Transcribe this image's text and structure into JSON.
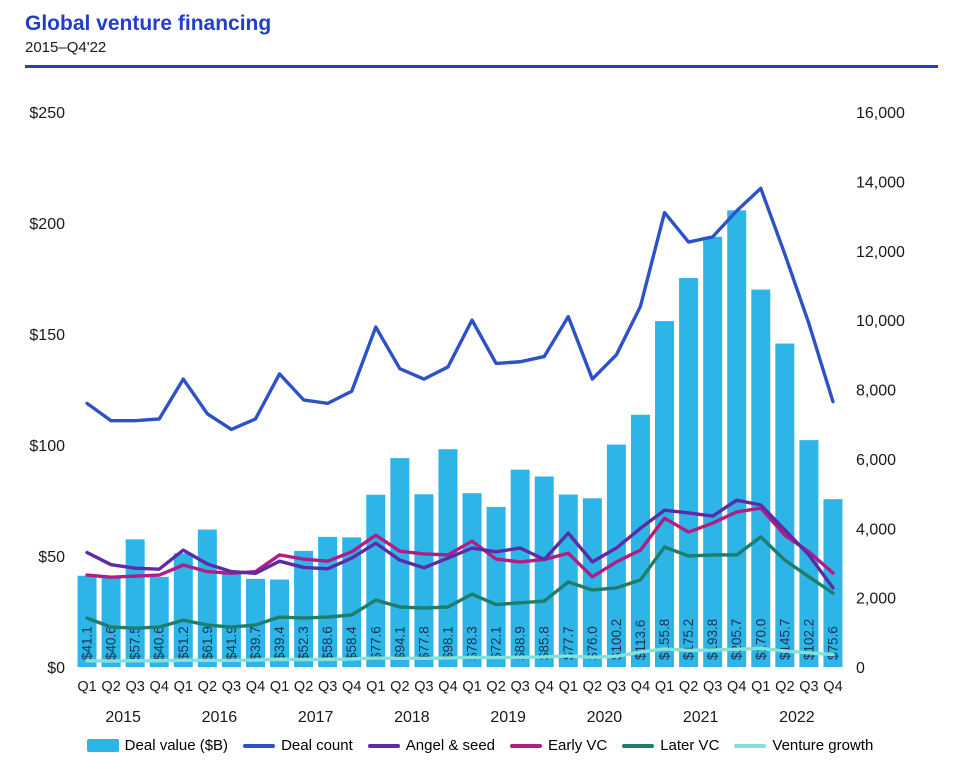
{
  "header": {
    "title": "Global venture financing",
    "subtitle": "2015–Q4'22"
  },
  "colors": {
    "title_blue": "#2140C7",
    "bar": "#2EB5E8",
    "deal_count": "#2C52C8",
    "angel_seed": "#5C2BA8",
    "early_vc": "#B01D84",
    "later_vc": "#1F7D6C",
    "venture_growth": "#82E2D7",
    "bar_label_text": "#1F3250",
    "axis_text": "#1a1a1a"
  },
  "chart_data": {
    "type": "bar+line",
    "title": "Global venture financing",
    "subtitle": "2015–Q4'22",
    "grid": "off",
    "legend_position": "bottom",
    "x": {
      "quarter_labels": [
        "Q1",
        "Q2",
        "Q3",
        "Q4"
      ],
      "year_labels": [
        "2015",
        "2016",
        "2017",
        "2018",
        "2019",
        "2020",
        "2021",
        "2022"
      ]
    },
    "left_axis": {
      "min": 0,
      "max": 250,
      "tick_values": [
        0,
        50,
        100,
        150,
        200,
        250
      ],
      "tick_labels": [
        "$0",
        "$50",
        "$100",
        "$150",
        "$200",
        "$250"
      ]
    },
    "right_axis": {
      "min": 0,
      "max": 16000,
      "tick_values": [
        0,
        2000,
        4000,
        6000,
        8000,
        10000,
        12000,
        14000,
        16000
      ],
      "tick_labels": [
        "0",
        "2,000",
        "4,000",
        "6,000",
        "8,000",
        "10,000",
        "12,000",
        "14,000",
        "16,000"
      ]
    },
    "bar_series": {
      "name": "Deal value ($B)",
      "axis": "left",
      "color_key": "bar",
      "values": [
        41.1,
        40.6,
        57.5,
        40.6,
        51.2,
        61.9,
        41.9,
        39.7,
        39.4,
        52.3,
        58.6,
        58.4,
        77.6,
        94.1,
        77.8,
        98.1,
        78.3,
        72.1,
        88.9,
        85.8,
        77.7,
        76.0,
        100.2,
        113.6,
        155.8,
        175.2,
        193.8,
        205.7,
        170.0,
        145.7,
        102.2,
        75.6
      ],
      "value_labels": [
        "$41.1",
        "$40.6",
        "$57.5",
        "$40.6",
        "$51.2",
        "$61.9",
        "$41.9",
        "$39.7",
        "$39.4",
        "$52.3",
        "$58.6",
        "$58.4",
        "$77.6",
        "$94.1",
        "$77.8",
        "$98.1",
        "$78.3",
        "$72.1",
        "$88.9",
        "$85.8",
        "$77.7",
        "$76.0",
        "$100.2",
        "$113.6",
        "$155.8",
        "$175.2",
        "$193.8",
        "$205.7",
        "$170.0",
        "$145.7",
        "$102.2",
        "$75.6"
      ]
    },
    "line_series": [
      {
        "name": "Deal count",
        "axis": "right",
        "color_key": "deal_count",
        "values": [
          7600,
          7100,
          7100,
          7150,
          8300,
          7300,
          6850,
          7150,
          8450,
          7700,
          7600,
          7950,
          9800,
          8600,
          8300,
          8650,
          10000,
          8750,
          8800,
          8950,
          10100,
          8300,
          9000,
          10400,
          13100,
          12250,
          12400,
          13150,
          13800,
          11900,
          9900,
          7650
        ]
      },
      {
        "name": "Angel & seed",
        "axis": "right",
        "color_key": "angel_seed",
        "values": [
          3300,
          2950,
          2850,
          2820,
          3370,
          2970,
          2750,
          2700,
          3050,
          2870,
          2830,
          3140,
          3570,
          3080,
          2860,
          3140,
          3430,
          3320,
          3430,
          3100,
          3860,
          3030,
          3430,
          4000,
          4520,
          4440,
          4350,
          4810,
          4670,
          3950,
          3230,
          2280
        ]
      },
      {
        "name": "Early VC",
        "axis": "right",
        "color_key": "early_vc",
        "values": [
          2650,
          2590,
          2620,
          2650,
          2940,
          2750,
          2700,
          2750,
          3230,
          3110,
          3050,
          3320,
          3800,
          3340,
          3260,
          3230,
          3630,
          3110,
          3030,
          3100,
          3280,
          2600,
          3030,
          3370,
          4290,
          3890,
          4150,
          4470,
          4580,
          3800,
          3320,
          2710
        ]
      },
      {
        "name": "Later VC",
        "axis": "right",
        "color_key": "later_vc",
        "values": [
          1410,
          1150,
          1120,
          1150,
          1350,
          1210,
          1150,
          1210,
          1440,
          1410,
          1440,
          1500,
          1930,
          1730,
          1700,
          1730,
          2100,
          1800,
          1850,
          1900,
          2450,
          2220,
          2280,
          2510,
          3460,
          3200,
          3230,
          3230,
          3750,
          3080,
          2600,
          2130
        ]
      },
      {
        "name": "Venture growth",
        "axis": "right",
        "color_key": "venture_growth",
        "values": [
          180,
          170,
          180,
          180,
          200,
          190,
          190,
          200,
          220,
          210,
          220,
          230,
          260,
          250,
          250,
          260,
          280,
          270,
          280,
          290,
          320,
          280,
          310,
          430,
          520,
          480,
          490,
          510,
          540,
          460,
          410,
          360
        ]
      }
    ]
  },
  "legend": {
    "items": [
      {
        "label": "Deal value ($B)",
        "swatch": "bar",
        "color_key": "bar"
      },
      {
        "label": "Deal count",
        "swatch": "line",
        "color_key": "deal_count"
      },
      {
        "label": "Angel & seed",
        "swatch": "line",
        "color_key": "angel_seed"
      },
      {
        "label": "Early VC",
        "swatch": "line",
        "color_key": "early_vc"
      },
      {
        "label": "Later VC",
        "swatch": "line",
        "color_key": "later_vc"
      },
      {
        "label": "Venture growth",
        "swatch": "line",
        "color_key": "venture_growth"
      }
    ]
  }
}
